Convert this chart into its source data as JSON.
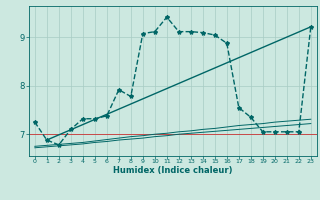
{
  "xlabel": "Humidex (Indice chaleur)",
  "bg_color": "#cce8e0",
  "grid_color": "#a8ccc4",
  "line_color": "#006666",
  "xlim": [
    -0.5,
    23.5
  ],
  "ylim": [
    6.55,
    9.65
  ],
  "yticks": [
    7,
    8,
    9
  ],
  "xticks": [
    0,
    1,
    2,
    3,
    4,
    5,
    6,
    7,
    8,
    9,
    10,
    11,
    12,
    13,
    14,
    15,
    16,
    17,
    18,
    19,
    20,
    21,
    22,
    23
  ],
  "series_main": {
    "x": [
      0,
      1,
      2,
      3,
      4,
      5,
      6,
      7,
      8,
      9,
      10,
      11,
      12,
      13,
      14,
      15,
      16,
      17,
      18,
      19,
      20,
      21,
      22,
      23
    ],
    "y": [
      7.25,
      6.88,
      6.78,
      7.1,
      7.32,
      7.32,
      7.38,
      7.92,
      7.78,
      9.08,
      9.12,
      9.42,
      9.12,
      9.12,
      9.1,
      9.05,
      8.88,
      7.55,
      7.35,
      7.05,
      7.05,
      7.05,
      7.05,
      9.22
    ],
    "linestyle": "--",
    "marker": "*",
    "markersize": 3,
    "linewidth": 1.0
  },
  "series_diagonal": {
    "x": [
      1,
      23
    ],
    "y": [
      6.88,
      9.22
    ],
    "linestyle": "-",
    "linewidth": 1.0
  },
  "series_flat1": {
    "x": [
      0,
      1,
      2,
      3,
      4,
      5,
      6,
      7,
      8,
      9,
      10,
      11,
      12,
      13,
      14,
      15,
      16,
      17,
      18,
      19,
      20,
      21,
      22,
      23
    ],
    "y": [
      6.75,
      6.77,
      6.79,
      6.81,
      6.83,
      6.86,
      6.89,
      6.92,
      6.95,
      6.97,
      7.0,
      7.02,
      7.05,
      7.07,
      7.1,
      7.12,
      7.15,
      7.18,
      7.2,
      7.22,
      7.25,
      7.27,
      7.29,
      7.31
    ],
    "linestyle": "-",
    "linewidth": 0.7
  },
  "series_flat2": {
    "x": [
      0,
      1,
      2,
      3,
      4,
      5,
      6,
      7,
      8,
      9,
      10,
      11,
      12,
      13,
      14,
      15,
      16,
      17,
      18,
      19,
      20,
      21,
      22,
      23
    ],
    "y": [
      6.72,
      6.74,
      6.76,
      6.78,
      6.8,
      6.83,
      6.85,
      6.88,
      6.9,
      6.92,
      6.95,
      6.97,
      7.0,
      7.02,
      7.04,
      7.06,
      7.08,
      7.1,
      7.12,
      7.14,
      7.16,
      7.18,
      7.2,
      7.22
    ],
    "linestyle": "-",
    "linewidth": 0.7
  },
  "hline_y": 7.0,
  "hline_color": "#cc3333",
  "hline_linewidth": 0.6
}
